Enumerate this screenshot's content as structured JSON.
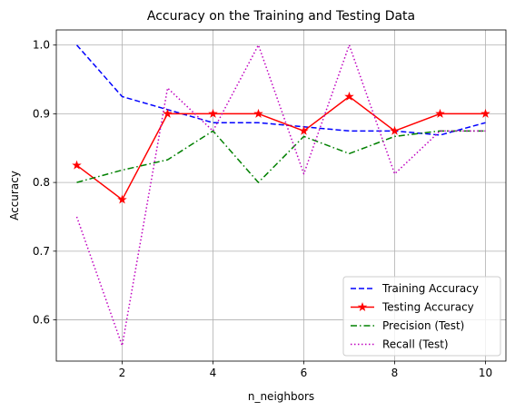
{
  "chart_data": {
    "type": "line",
    "title": "Accuracy on the Training and Testing Data",
    "xlabel": "n_neighbors",
    "ylabel": "Accuracy",
    "xlim": [
      0.55,
      10.45
    ],
    "ylim": [
      0.54,
      1.022
    ],
    "xticks": [
      2,
      4,
      6,
      8,
      10
    ],
    "yticks": [
      0.6,
      0.7,
      0.8,
      0.9,
      1.0
    ],
    "ytick_labels": [
      "0.6",
      "0.7",
      "0.8",
      "0.9",
      "1.0"
    ],
    "grid": true,
    "legend_position": "lower right",
    "x": [
      1,
      2,
      3,
      4,
      5,
      6,
      7,
      8,
      9,
      10
    ],
    "series": [
      {
        "name": "Training Accuracy",
        "values": [
          1.0,
          0.925,
          0.906,
          0.887,
          0.887,
          0.881,
          0.875,
          0.875,
          0.869,
          0.887
        ],
        "color": "#0000ff",
        "linestyle": "dashed",
        "marker": "none"
      },
      {
        "name": "Testing Accuracy",
        "values": [
          0.825,
          0.775,
          0.9,
          0.9,
          0.9,
          0.875,
          0.925,
          0.875,
          0.9,
          0.9
        ],
        "color": "#ff0000",
        "linestyle": "solid",
        "marker": "star"
      },
      {
        "name": "Precision (Test)",
        "values": [
          0.8,
          0.818,
          0.833,
          0.875,
          0.8,
          0.867,
          0.842,
          0.867,
          0.875,
          0.875
        ],
        "color": "#008000",
        "linestyle": "dashdot",
        "marker": "none"
      },
      {
        "name": "Recall (Test)",
        "values": [
          0.75,
          0.5625,
          0.9375,
          0.875,
          1.0,
          0.8125,
          1.0,
          0.8125,
          0.875,
          0.875
        ],
        "color": "#bf00bf",
        "linestyle": "dotted",
        "marker": "none"
      }
    ]
  }
}
